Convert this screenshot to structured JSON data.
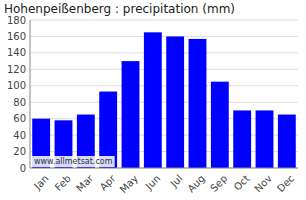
{
  "chart_data": {
    "type": "bar",
    "title": "Hohenpeißenberg : precipitation (mm)",
    "categories": [
      "Jan",
      "Feb",
      "Mar",
      "Apr",
      "May",
      "Jun",
      "Jul",
      "Aug",
      "Sep",
      "Oct",
      "Nov",
      "Dec"
    ],
    "values": [
      60,
      58,
      65,
      93,
      130,
      165,
      160,
      157,
      105,
      70,
      70,
      65
    ],
    "color": "#0000ff",
    "ylim": [
      0,
      180
    ],
    "yticks": [
      0,
      20,
      40,
      60,
      80,
      100,
      120,
      140,
      160,
      180
    ],
    "grid": true,
    "annotations": [
      "www.allmetsat.com"
    ]
  }
}
